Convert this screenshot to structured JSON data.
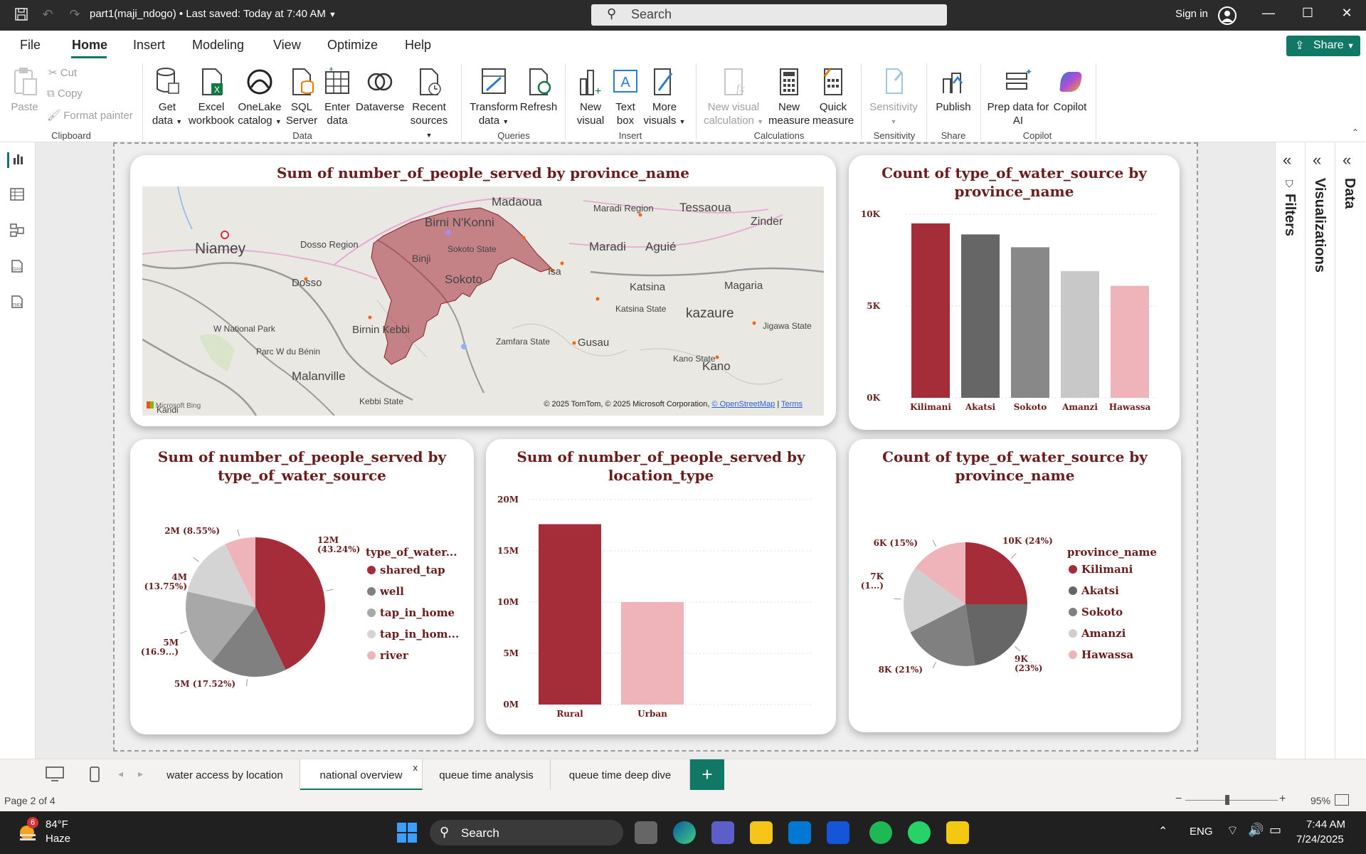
{
  "app": {
    "doc_title": "part1(maji_ndogo)",
    "saved_status": "Last saved: Today at 7:40 AM",
    "search_placeholder": "Search",
    "sign_in": "Sign in"
  },
  "menu": {
    "items": [
      "File",
      "Home",
      "Insert",
      "Modeling",
      "View",
      "Optimize",
      "Help"
    ],
    "active": "Home",
    "share_label": "Share"
  },
  "ribbon": {
    "clipboard": {
      "paste": "Paste",
      "cut": "Cut",
      "copy": "Copy",
      "format_painter": "Format painter",
      "group": "Clipboard"
    },
    "data": {
      "group": "Data",
      "buttons": [
        {
          "l1": "Get",
          "l2": "data"
        },
        {
          "l1": "Excel",
          "l2": "workbook"
        },
        {
          "l1": "OneLake",
          "l2": "catalog"
        },
        {
          "l1": "SQL",
          "l2": "Server"
        },
        {
          "l1": "Enter",
          "l2": "data"
        },
        {
          "l1": "Dataverse",
          "l2": ""
        },
        {
          "l1": "Recent",
          "l2": "sources"
        }
      ]
    },
    "queries": {
      "group": "Queries",
      "transform_l1": "Transform",
      "transform_l2": "data",
      "refresh": "Refresh"
    },
    "insert": {
      "group": "Insert",
      "new_visual_l1": "New",
      "new_visual_l2": "visual",
      "text_box_l1": "Text",
      "text_box_l2": "box",
      "more_visuals_l1": "More",
      "more_visuals_l2": "visuals"
    },
    "calculations": {
      "group": "Calculations",
      "new_visual_calc_l1": "New visual",
      "new_visual_calc_l2": "calculation",
      "new_measure_l1": "New",
      "new_measure_l2": "measure",
      "quick_measure_l1": "Quick",
      "quick_measure_l2": "measure"
    },
    "sensitivity": {
      "group": "Sensitivity",
      "label": "Sensitivity"
    },
    "share": {
      "group": "Share",
      "publish": "Publish"
    },
    "copilot": {
      "group": "Copilot",
      "prep_l1": "Prep data for",
      "prep_l2": "AI",
      "copilot": "Copilot"
    }
  },
  "panes": {
    "filters": "Filters",
    "visualizations": "Visualizations",
    "data": "Data"
  },
  "charts": {
    "map": {
      "title": "Sum of number_of_people_served by province_name",
      "places": [
        "Madaoua",
        "Birni N'Konni",
        "Maradi Region",
        "Tessaoua",
        "Zinder",
        "Niamey",
        "Dosso Region",
        "Binji",
        "Sokoto State",
        "Maradi",
        "Aguié",
        "Sokoto",
        "Isa",
        "Dosso",
        "Katsina",
        "Magaria",
        "Katsina State",
        "kazaure",
        "W National Park",
        "Birnin Kebbi",
        "Jigawa State",
        "Parc W du Bénin",
        "Zamfara State",
        "Gusau",
        "Kano State",
        "Kano",
        "Malanville",
        "Kebbi State",
        "Kandi"
      ],
      "attribution": "© 2025 TomTom, © 2025 Microsoft Corporation,",
      "osm": "© OpenStreetMap",
      "terms": "Terms",
      "bing": "Microsoft Bing"
    },
    "water_source_count": {
      "title": "Count of type_of_water_source by province_name",
      "y_ticks": [
        "10K",
        "5K",
        "0K"
      ]
    },
    "people_by_source": {
      "title": "Sum of number_of_people_served by type_of_water_source",
      "legend_title": "type_of_water...",
      "slice_labels": [
        "12M\n(43.24%)",
        "5M (17.52%)",
        "5M\n(16.9...)",
        "4M\n(13.75%)",
        "2M (8.55%)"
      ]
    },
    "people_by_location": {
      "title": "Sum of number_of_people_served by location_type",
      "y_ticks": [
        "20M",
        "15M",
        "10M",
        "5M",
        "0M"
      ]
    },
    "source_count_pie": {
      "title": "Count of type_of_water_source by province_name",
      "legend_title": "province_name",
      "slice_labels": [
        "10K (24%)",
        "9K\n(23%)",
        "8K (21%)",
        "7K\n(1...)",
        "6K (15%)"
      ]
    }
  },
  "chart_data": [
    {
      "type": "bar",
      "title": "Count of type_of_water_source by province_name",
      "categories": [
        "Kilimani",
        "Akatsi",
        "Sokoto",
        "Amanzi",
        "Hawassa"
      ],
      "values": [
        9500,
        8900,
        8200,
        6900,
        6100
      ],
      "ylim": [
        0,
        10000
      ],
      "colors": [
        "#a52d3a",
        "#666666",
        "#888888",
        "#c8c8c8",
        "#efb4b9"
      ]
    },
    {
      "type": "pie",
      "title": "Sum of number_of_people_served by type_of_water_source",
      "categories": [
        "shared_tap",
        "well",
        "tap_in_home",
        "tap_in_home_broken",
        "river"
      ],
      "values": [
        12,
        5,
        5,
        4,
        2
      ],
      "percent": [
        43.24,
        17.52,
        16.9,
        13.75,
        8.55
      ],
      "colors": [
        "#a52d3a",
        "#808080",
        "#a8a8a8",
        "#d4d4d4",
        "#efb4b9"
      ]
    },
    {
      "type": "bar",
      "title": "Sum of number_of_people_served by location_type",
      "categories": [
        "Rural",
        "Urban"
      ],
      "values": [
        17600000,
        10000000
      ],
      "ylim": [
        0,
        20000000
      ],
      "colors": [
        "#a52d3a",
        "#efb4b9"
      ]
    },
    {
      "type": "pie",
      "title": "Count of type_of_water_source by province_name",
      "categories": [
        "Kilimani",
        "Akatsi",
        "Sokoto",
        "Amanzi",
        "Hawassa"
      ],
      "values": [
        10,
        9,
        8,
        7,
        6
      ],
      "percent": [
        24,
        23,
        21,
        17,
        15
      ],
      "colors": [
        "#a52d3a",
        "#666666",
        "#808080",
        "#cfcfcf",
        "#efb4b9"
      ]
    }
  ],
  "page_tabs": [
    "water access by location",
    "national overview",
    "queue time analysis",
    "queue time deep dive"
  ],
  "active_tab": "national overview",
  "tab_close": "x",
  "status": {
    "page": "Page 2 of 4",
    "zoom": "95%"
  },
  "taskbar": {
    "temp": "84°F",
    "weather": "Haze",
    "badge": "6",
    "search": "Search",
    "lang": "ENG",
    "time": "7:44 AM",
    "date": "7/24/2025"
  }
}
